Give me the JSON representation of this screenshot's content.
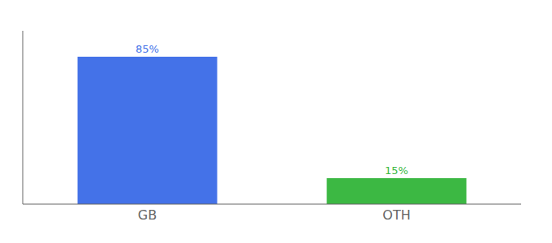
{
  "chart_data": {
    "type": "bar",
    "categories": [
      "GB",
      "OTH"
    ],
    "values": [
      85,
      15
    ],
    "colors": [
      "#4472E8",
      "#3CB843"
    ],
    "value_labels": [
      "85%",
      "15%"
    ],
    "data_labels": true,
    "ylim": [
      0,
      100
    ],
    "tick_labels": "x"
  }
}
